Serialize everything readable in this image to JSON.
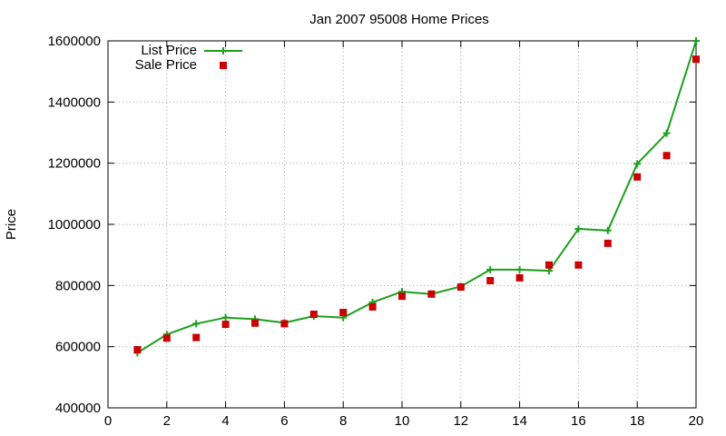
{
  "chart_data": {
    "type": "line",
    "title": "Jan 2007 95008 Home Prices",
    "xlabel": "",
    "ylabel": "Price",
    "xlim": [
      0,
      20
    ],
    "ylim": [
      400000,
      1600000
    ],
    "x_ticks": [
      0,
      2,
      4,
      6,
      8,
      10,
      12,
      14,
      16,
      18,
      20
    ],
    "y_ticks": [
      400000,
      600000,
      800000,
      1000000,
      1200000,
      1400000,
      1600000
    ],
    "x_tick_labels": [
      "0",
      "2",
      "4",
      "6",
      "8",
      "10",
      "12",
      "14",
      "16",
      "18",
      "20"
    ],
    "y_tick_labels": [
      "400000",
      "600000",
      "800000",
      "1000000",
      "1200000",
      "1400000",
      "1600000"
    ],
    "grid": true,
    "legend_position": "top-left",
    "series": [
      {
        "name": "List Price",
        "style": "line-with-plus-markers",
        "color": "#1aa01a",
        "x": [
          1,
          2,
          3,
          4,
          5,
          6,
          7,
          8,
          9,
          10,
          11,
          12,
          13,
          14,
          15,
          16,
          17,
          18,
          19,
          20
        ],
        "values": [
          580000,
          640000,
          675000,
          695000,
          690000,
          678000,
          700000,
          695000,
          745000,
          780000,
          772000,
          797000,
          852000,
          852000,
          848000,
          985000,
          980000,
          1198000,
          1298000,
          1600000
        ]
      },
      {
        "name": "Sale Price",
        "style": "square-markers",
        "color": "#cc0000",
        "x": [
          1,
          2,
          3,
          4,
          5,
          6,
          7,
          8,
          9,
          10,
          11,
          12,
          13,
          14,
          15,
          16,
          17,
          18,
          19,
          20
        ],
        "values": [
          590000,
          628000,
          630000,
          673000,
          677000,
          675000,
          706000,
          712000,
          730000,
          765000,
          772000,
          795000,
          816000,
          825000,
          867000,
          867000,
          938000,
          1155000,
          1225000,
          1540000
        ]
      }
    ]
  }
}
